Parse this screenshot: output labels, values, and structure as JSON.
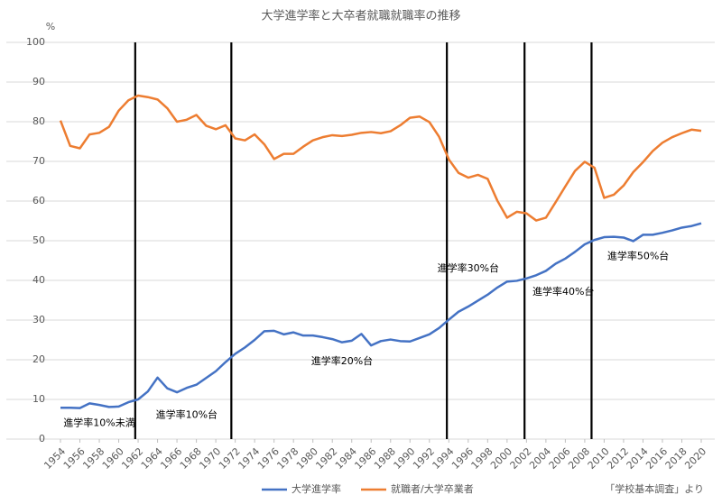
{
  "chart_data": {
    "type": "line",
    "title": "大学進学率と大卒者就職就職率の推移",
    "y_unit": "%",
    "x": [
      1954,
      1955,
      1956,
      1957,
      1958,
      1959,
      1960,
      1961,
      1962,
      1963,
      1964,
      1965,
      1966,
      1967,
      1968,
      1969,
      1970,
      1971,
      1972,
      1973,
      1974,
      1975,
      1976,
      1977,
      1978,
      1979,
      1980,
      1981,
      1982,
      1983,
      1984,
      1985,
      1986,
      1987,
      1988,
      1989,
      1990,
      1991,
      1992,
      1993,
      1994,
      1995,
      1996,
      1997,
      1998,
      1999,
      2000,
      2001,
      2002,
      2003,
      2004,
      2005,
      2006,
      2007,
      2008,
      2009,
      2010,
      2011,
      2012,
      2013,
      2014,
      2015,
      2016,
      2017,
      2018,
      2019,
      2020
    ],
    "series": [
      {
        "name": "大学進学率",
        "color": "#4472c4",
        "values": [
          7.9,
          7.9,
          7.8,
          9.0,
          8.6,
          8.1,
          8.2,
          9.3,
          10.0,
          12.0,
          15.5,
          12.8,
          11.8,
          12.9,
          13.7,
          15.4,
          17.1,
          19.4,
          21.5,
          23.1,
          25.0,
          27.2,
          27.3,
          26.4,
          26.9,
          26.1,
          26.1,
          25.7,
          25.2,
          24.4,
          24.8,
          26.5,
          23.6,
          24.7,
          25.1,
          24.7,
          24.6,
          25.5,
          26.4,
          28.0,
          30.1,
          32.1,
          33.4,
          34.9,
          36.4,
          38.2,
          39.7,
          39.9,
          40.5,
          41.3,
          42.4,
          44.2,
          45.5,
          47.2,
          49.1,
          50.2,
          50.9,
          51.0,
          50.8,
          49.9,
          51.5,
          51.5,
          52.0,
          52.6,
          53.3,
          53.7,
          54.4
        ]
      },
      {
        "name": "就職者/大学卒業者",
        "color": "#ed7d31",
        "values": [
          80.3,
          73.9,
          73.3,
          76.8,
          77.2,
          78.7,
          82.8,
          85.4,
          86.6,
          86.2,
          85.6,
          83.4,
          80.0,
          80.5,
          81.7,
          79.0,
          78.1,
          79.1,
          75.8,
          75.3,
          76.8,
          74.3,
          70.6,
          71.9,
          71.9,
          73.7,
          75.3,
          76.1,
          76.6,
          76.4,
          76.7,
          77.2,
          77.4,
          77.1,
          77.6,
          79.1,
          81.0,
          81.3,
          79.9,
          76.2,
          70.5,
          67.1,
          65.9,
          66.6,
          65.6,
          60.1,
          55.8,
          57.3,
          56.9,
          55.1,
          55.8,
          59.7,
          63.7,
          67.6,
          69.9,
          68.4,
          60.8,
          61.6,
          63.9,
          67.3,
          69.8,
          72.6,
          74.7,
          76.1,
          77.1,
          78.0,
          77.7
        ]
      }
    ],
    "xlim": [
      1954,
      2020
    ],
    "xticks": [
      1954,
      1956,
      1958,
      1960,
      1962,
      1964,
      1966,
      1968,
      1970,
      1972,
      1974,
      1976,
      1978,
      1980,
      1982,
      1984,
      1986,
      1988,
      1990,
      1992,
      1994,
      1996,
      1998,
      2000,
      2002,
      2004,
      2006,
      2008,
      2010,
      2012,
      2014,
      2016,
      2018,
      2020
    ],
    "ylim": [
      0,
      100
    ],
    "yticks": [
      0,
      10,
      20,
      30,
      40,
      50,
      60,
      70,
      80,
      90,
      100
    ],
    "grid": true,
    "dividers": [
      1961.7,
      1971.6,
      1993.8,
      2001.8,
      2008.7
    ],
    "annotations": [
      {
        "text": "進学率10%未満",
        "x": 1958,
        "y": 4
      },
      {
        "text": "進学率10%台",
        "x": 1967,
        "y": 6
      },
      {
        "text": "進学率20%台",
        "x": 1983,
        "y": 19.5
      },
      {
        "text": "進学率30%台",
        "x": 1996,
        "y": 43
      },
      {
        "text": "進学率40%台",
        "x": 2005.8,
        "y": 37
      },
      {
        "text": "進学率50%台",
        "x": 2013.5,
        "y": 46
      }
    ],
    "source": "「学校基本調査」より"
  }
}
